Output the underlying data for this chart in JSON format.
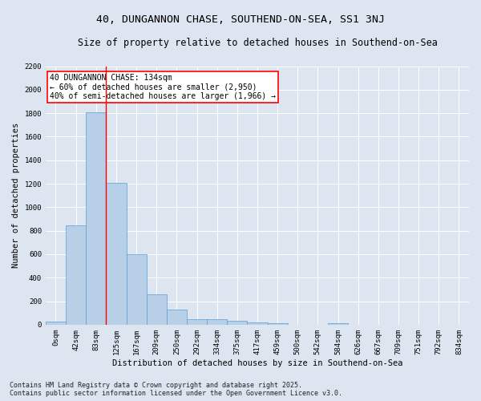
{
  "title": "40, DUNGANNON CHASE, SOUTHEND-ON-SEA, SS1 3NJ",
  "subtitle": "Size of property relative to detached houses in Southend-on-Sea",
  "xlabel": "Distribution of detached houses by size in Southend-on-Sea",
  "ylabel": "Number of detached properties",
  "categories": [
    "0sqm",
    "42sqm",
    "83sqm",
    "125sqm",
    "167sqm",
    "209sqm",
    "250sqm",
    "292sqm",
    "334sqm",
    "375sqm",
    "417sqm",
    "459sqm",
    "500sqm",
    "542sqm",
    "584sqm",
    "626sqm",
    "667sqm",
    "709sqm",
    "751sqm",
    "792sqm",
    "834sqm"
  ],
  "values": [
    25,
    845,
    1810,
    1210,
    600,
    255,
    130,
    50,
    45,
    30,
    20,
    10,
    0,
    0,
    15,
    0,
    0,
    0,
    0,
    0,
    0
  ],
  "bar_color": "#b8cfe8",
  "bar_edge_color": "#5a9fd4",
  "vline_x": 3,
  "vline_color": "red",
  "annotation_text": "40 DUNGANNON CHASE: 134sqm\n← 60% of detached houses are smaller (2,950)\n40% of semi-detached houses are larger (1,966) →",
  "annotation_box_color": "white",
  "annotation_box_edge": "red",
  "ylim": [
    0,
    2200
  ],
  "yticks": [
    0,
    200,
    400,
    600,
    800,
    1000,
    1200,
    1400,
    1600,
    1800,
    2000,
    2200
  ],
  "background_color": "#dde5f0",
  "plot_background": "#dde5f0",
  "footer_line1": "Contains HM Land Registry data © Crown copyright and database right 2025.",
  "footer_line2": "Contains public sector information licensed under the Open Government Licence v3.0.",
  "title_fontsize": 9.5,
  "subtitle_fontsize": 8.5,
  "axis_label_fontsize": 7.5,
  "tick_fontsize": 6.5,
  "annotation_fontsize": 7,
  "footer_fontsize": 6
}
